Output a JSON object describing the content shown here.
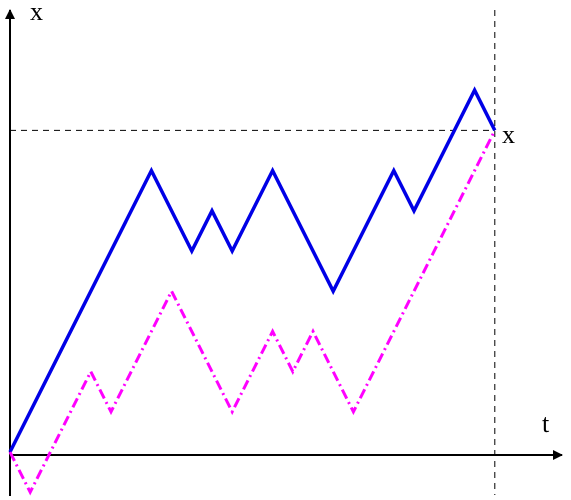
{
  "labels": {
    "y_axis": "x",
    "x_axis": "t",
    "level": "x"
  },
  "colors": {
    "axis": "#000000",
    "guide": "#000000",
    "solid_path": "#0000e6",
    "dashdot_path": "#ff00ff"
  },
  "chart_data": {
    "type": "line",
    "title": "",
    "xlabel": "t",
    "ylabel": "x",
    "series": [
      {
        "style": "solid",
        "color": "#0000e6",
        "points": [
          [
            0,
            0
          ],
          [
            7,
            14
          ],
          [
            9,
            10
          ],
          [
            10,
            12
          ],
          [
            11,
            10
          ],
          [
            13,
            14
          ],
          [
            16,
            8
          ],
          [
            19,
            14
          ],
          [
            20,
            12
          ],
          [
            23,
            18
          ],
          [
            24,
            16
          ]
        ]
      },
      {
        "style": "dash-dot",
        "color": "#ff00ff",
        "points": [
          [
            0,
            0
          ],
          [
            1,
            -2
          ],
          [
            4,
            4
          ],
          [
            5,
            2
          ],
          [
            8,
            8
          ],
          [
            11,
            2
          ],
          [
            13,
            6
          ],
          [
            14,
            4
          ],
          [
            15,
            6
          ],
          [
            17,
            2
          ],
          [
            24,
            16
          ]
        ]
      }
    ],
    "guides": {
      "horizontal_level": 16,
      "vertical_time": 24
    }
  }
}
